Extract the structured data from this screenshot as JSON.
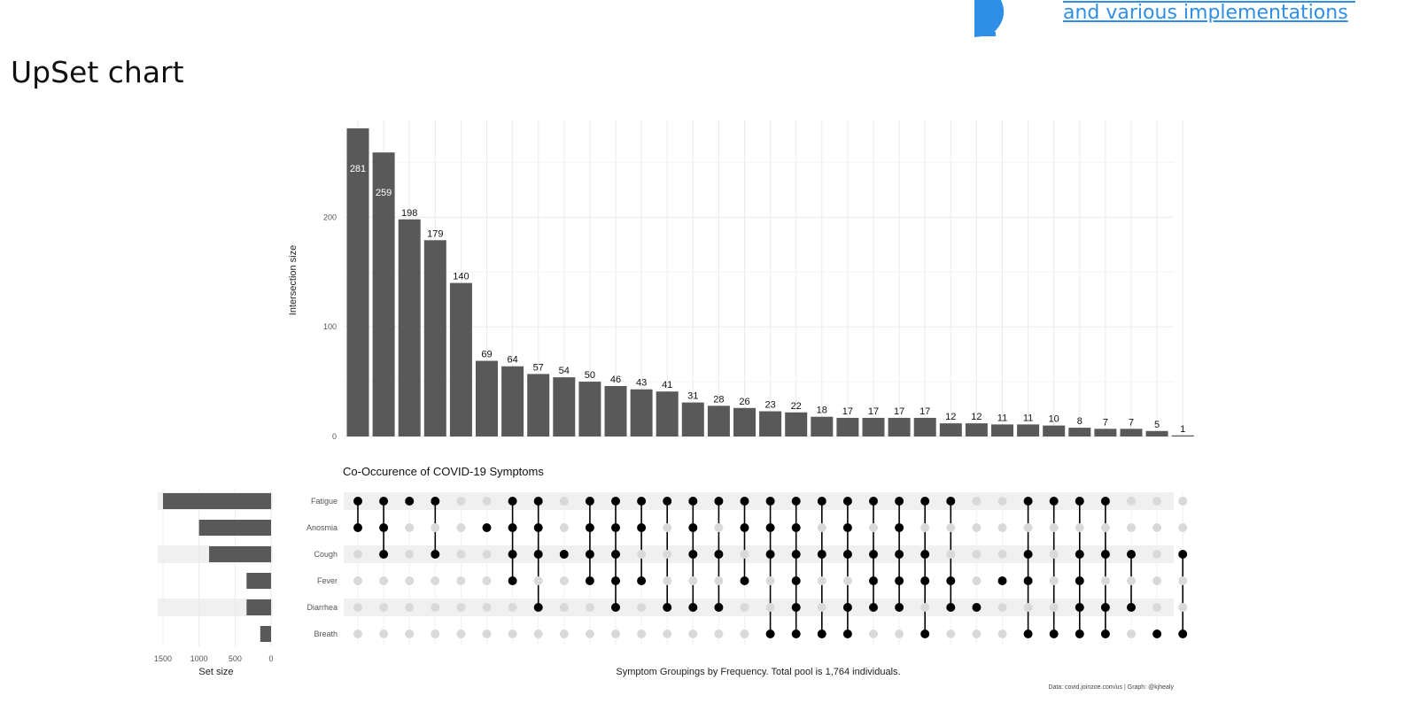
{
  "page": {
    "heading": "UpSet chart",
    "link_text": "and various implementations"
  },
  "chart_data": {
    "type": "upset",
    "title": "Co-Occurence of COVID-19 Symptoms",
    "ylabel": "Intersection size",
    "xlabel": "Symptom Groupings by Frequency. Total pool is 1,764 individuals.",
    "caption": "Data: covid.joinzoe.com/us | Graph: @kjhealy",
    "ylim": [
      0,
      285
    ],
    "yticks": [
      0,
      100,
      200
    ],
    "sets": [
      "Fatigue",
      "Anosmia",
      "Cough",
      "Fever",
      "Diarrhea",
      "Breath"
    ],
    "set_sizes": [
      1500,
      1000,
      860,
      340,
      340,
      150
    ],
    "set_size_label": "Set size",
    "set_size_ticks": [
      1500,
      1000,
      500,
      0
    ],
    "intersections": [
      {
        "value": 281,
        "members": [
          "Fatigue",
          "Anosmia"
        ]
      },
      {
        "value": 259,
        "members": [
          "Fatigue",
          "Anosmia",
          "Cough"
        ]
      },
      {
        "value": 198,
        "members": [
          "Fatigue"
        ]
      },
      {
        "value": 179,
        "members": [
          "Fatigue",
          "Cough"
        ]
      },
      {
        "value": 140,
        "members": []
      },
      {
        "value": 69,
        "members": [
          "Anosmia"
        ]
      },
      {
        "value": 64,
        "members": [
          "Fatigue",
          "Anosmia",
          "Cough",
          "Fever"
        ]
      },
      {
        "value": 57,
        "members": [
          "Fatigue",
          "Anosmia",
          "Cough",
          "Diarrhea"
        ]
      },
      {
        "value": 54,
        "members": [
          "Cough"
        ]
      },
      {
        "value": 50,
        "members": [
          "Fatigue",
          "Anosmia",
          "Cough",
          "Fever"
        ]
      },
      {
        "value": 46,
        "members": [
          "Fatigue",
          "Anosmia",
          "Cough",
          "Fever",
          "Diarrhea"
        ]
      },
      {
        "value": 43,
        "members": [
          "Fatigue",
          "Anosmia",
          "Fever"
        ]
      },
      {
        "value": 41,
        "members": [
          "Fatigue",
          "Diarrhea"
        ]
      },
      {
        "value": 31,
        "members": [
          "Fatigue",
          "Anosmia",
          "Cough",
          "Diarrhea"
        ]
      },
      {
        "value": 28,
        "members": [
          "Fatigue",
          "Cough",
          "Diarrhea"
        ]
      },
      {
        "value": 26,
        "members": [
          "Fatigue",
          "Anosmia",
          "Fever"
        ]
      },
      {
        "value": 23,
        "members": [
          "Fatigue",
          "Anosmia",
          "Cough",
          "Breath"
        ]
      },
      {
        "value": 22,
        "members": [
          "Fatigue",
          "Anosmia",
          "Cough",
          "Fever",
          "Diarrhea",
          "Breath"
        ]
      },
      {
        "value": 18,
        "members": [
          "Fatigue",
          "Cough",
          "Breath"
        ]
      },
      {
        "value": 17,
        "members": [
          "Fatigue",
          "Anosmia",
          "Cough",
          "Diarrhea",
          "Breath"
        ]
      },
      {
        "value": 17,
        "members": [
          "Fatigue",
          "Cough",
          "Fever",
          "Diarrhea"
        ]
      },
      {
        "value": 17,
        "members": [
          "Fatigue",
          "Anosmia",
          "Cough",
          "Fever",
          "Diarrhea"
        ]
      },
      {
        "value": 17,
        "members": [
          "Fatigue",
          "Cough",
          "Fever",
          "Breath"
        ]
      },
      {
        "value": 12,
        "members": [
          "Fatigue",
          "Fever",
          "Diarrhea"
        ]
      },
      {
        "value": 12,
        "members": [
          "Diarrhea"
        ]
      },
      {
        "value": 11,
        "members": [
          "Fever"
        ]
      },
      {
        "value": 11,
        "members": [
          "Fatigue",
          "Cough",
          "Fever",
          "Breath"
        ]
      },
      {
        "value": 10,
        "members": [
          "Fatigue",
          "Breath"
        ]
      },
      {
        "value": 8,
        "members": [
          "Fatigue",
          "Cough",
          "Fever",
          "Diarrhea",
          "Breath"
        ]
      },
      {
        "value": 7,
        "members": [
          "Fatigue",
          "Cough",
          "Diarrhea",
          "Breath"
        ]
      },
      {
        "value": 7,
        "members": [
          "Cough",
          "Diarrhea"
        ]
      },
      {
        "value": 5,
        "members": [
          "Breath"
        ]
      },
      {
        "value": 1,
        "members": [
          "Cough",
          "Breath"
        ]
      }
    ],
    "colors": {
      "bar": "#595959",
      "dot_on": "#000000",
      "dot_off": "#d9d9d9",
      "stripe": "#f0f0f0",
      "grid": "#ebebeb"
    }
  }
}
